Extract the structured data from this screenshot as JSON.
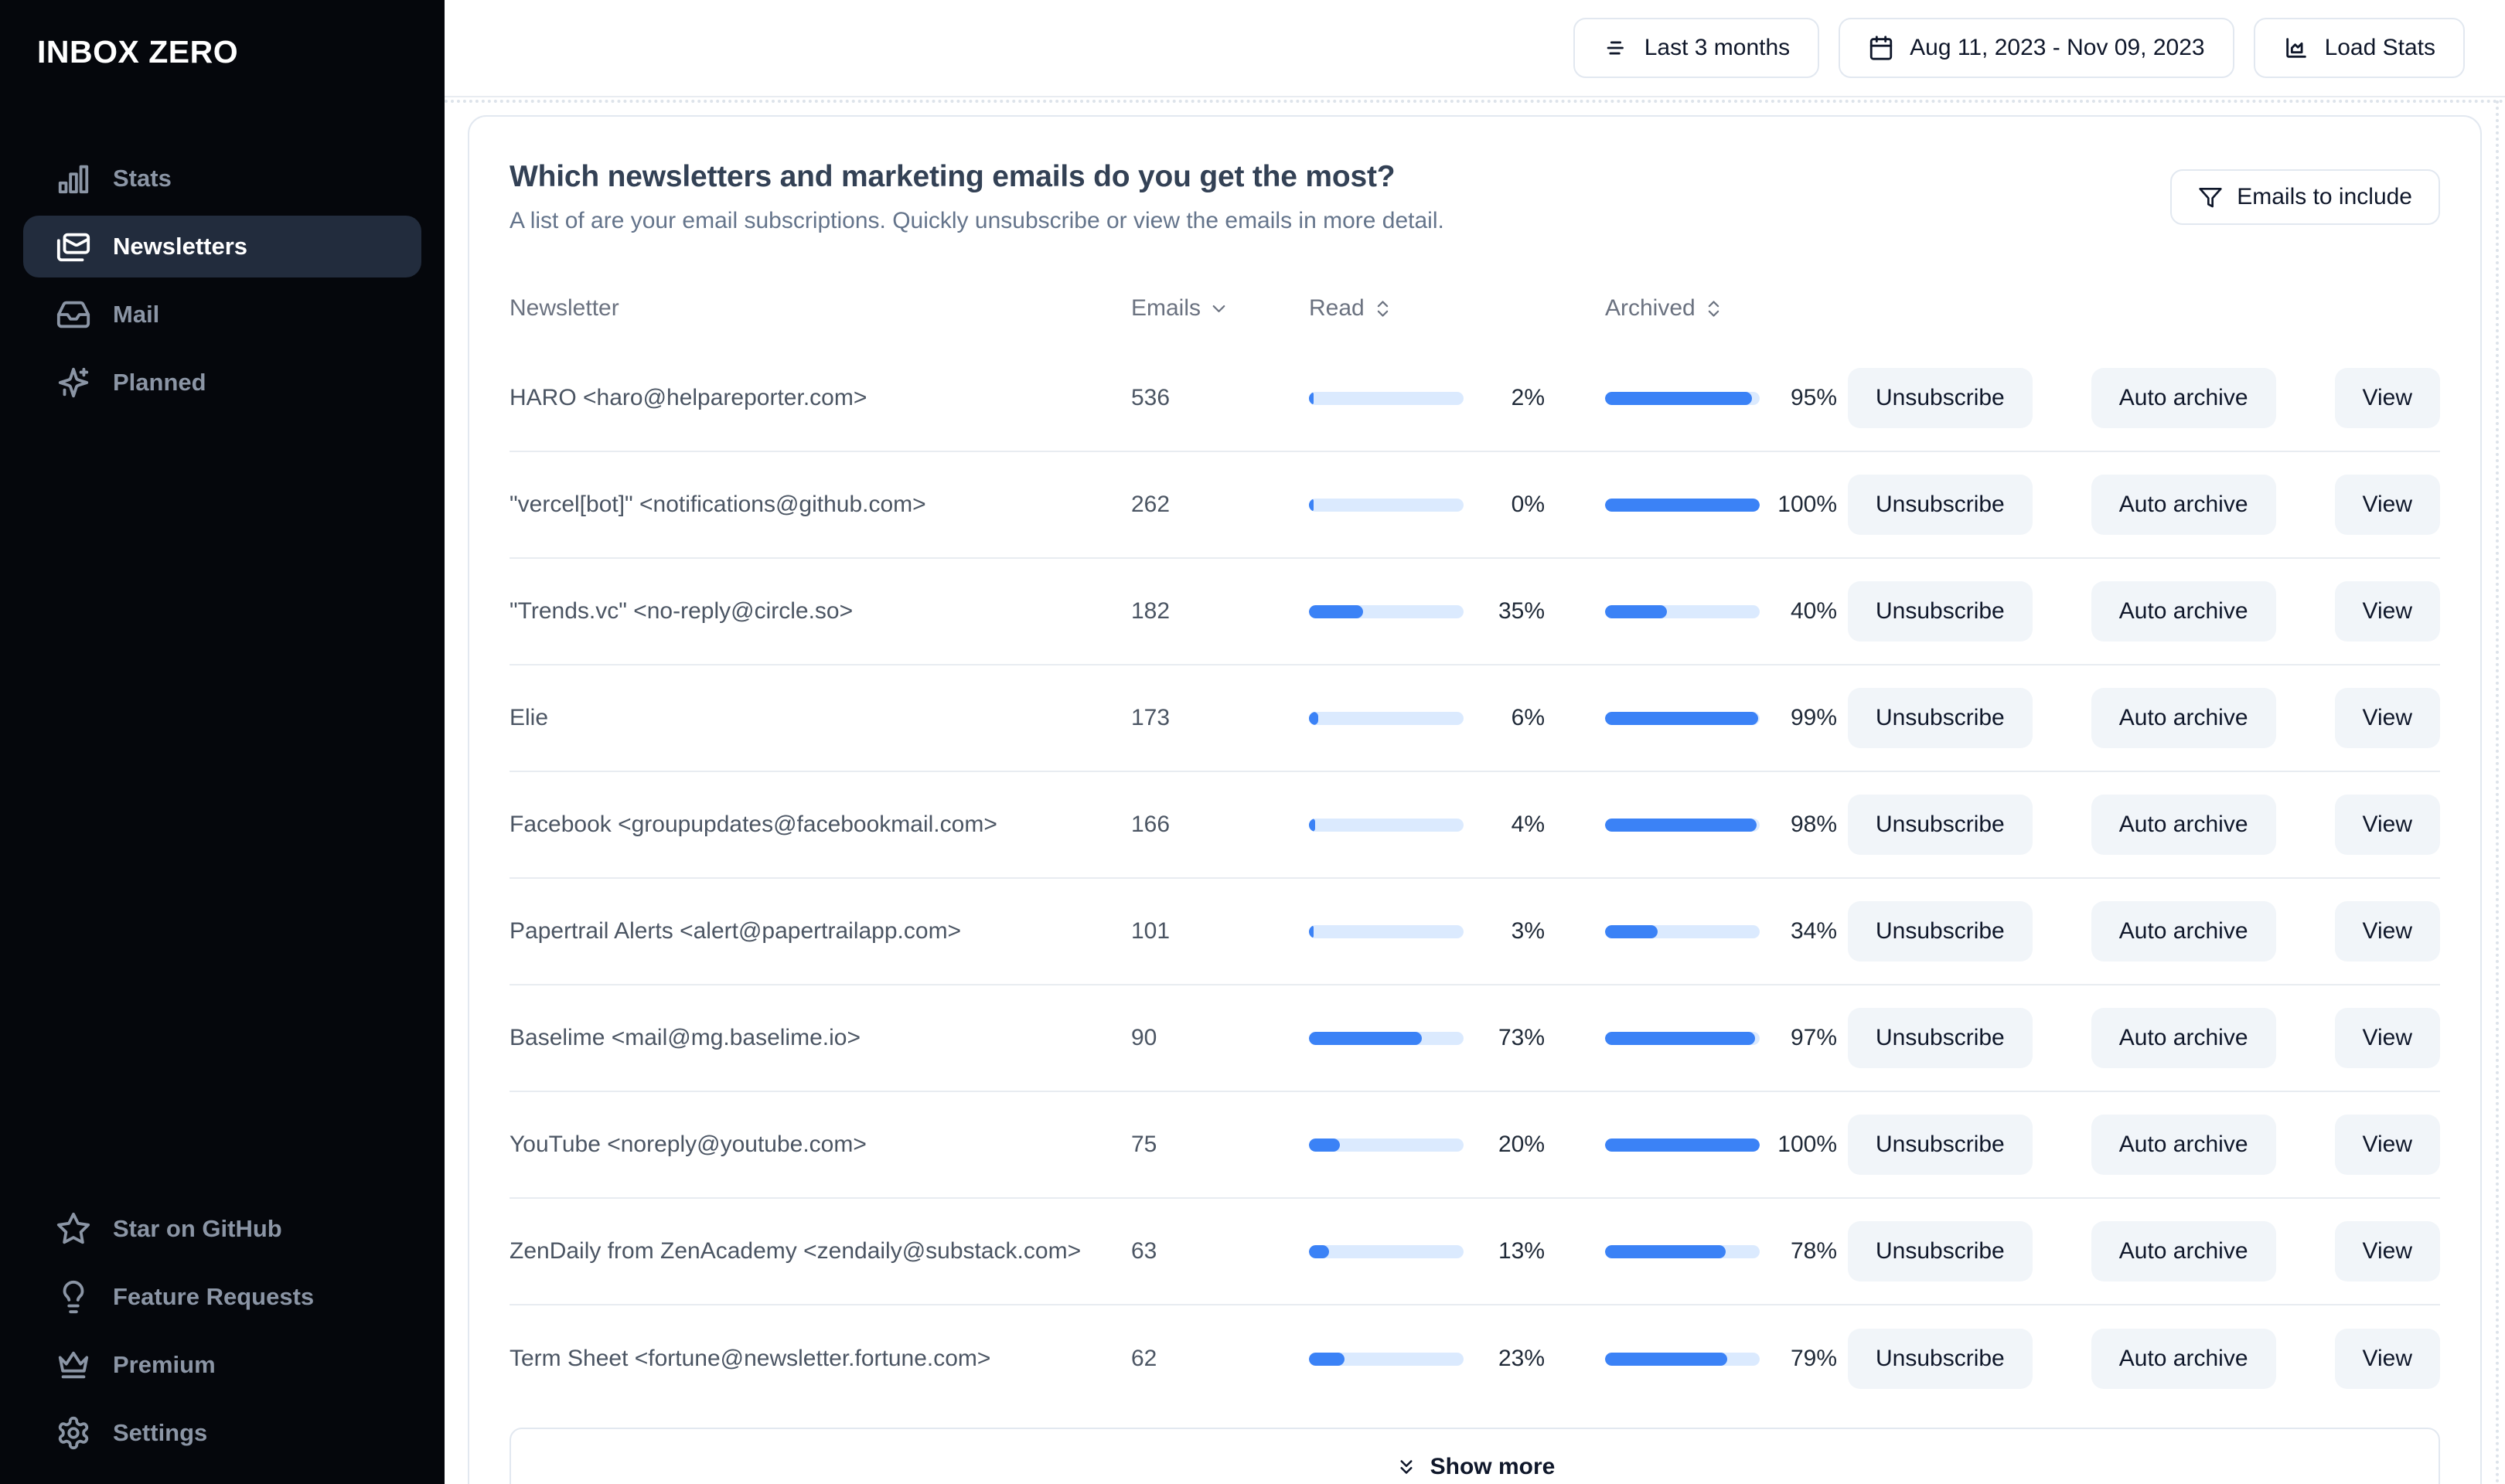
{
  "app": {
    "logo": "INBOX ZERO"
  },
  "sidebar": {
    "items": [
      {
        "icon": "bar-chart-icon",
        "label": "Stats",
        "active": false
      },
      {
        "icon": "mails-icon",
        "label": "Newsletters",
        "active": true
      },
      {
        "icon": "inbox-icon",
        "label": "Mail",
        "active": false
      },
      {
        "icon": "sparkles-icon",
        "label": "Planned",
        "active": false
      }
    ],
    "footer_items": [
      {
        "icon": "star-icon",
        "label": "Star on GitHub"
      },
      {
        "icon": "lightbulb-icon",
        "label": "Feature Requests"
      },
      {
        "icon": "crown-icon",
        "label": "Premium"
      },
      {
        "icon": "gear-icon",
        "label": "Settings"
      }
    ]
  },
  "topbar": {
    "period_button": {
      "icon": "filter-lines-icon",
      "label": "Last 3 months"
    },
    "date_range_button": {
      "icon": "calendar-icon",
      "label": "Aug 11, 2023 - Nov 09, 2023"
    },
    "load_stats_button": {
      "icon": "chart-icon",
      "label": "Load Stats"
    }
  },
  "card": {
    "title": "Which newsletters and marketing emails do you get the most?",
    "subtitle": "A list of are your email subscriptions. Quickly unsubscribe or view the emails in more detail.",
    "filter_button": {
      "icon": "funnel-icon",
      "label": "Emails to include"
    },
    "table": {
      "columns": [
        {
          "label": "Newsletter",
          "sort": "none"
        },
        {
          "label": "Emails",
          "sort": "desc"
        },
        {
          "label": "Read",
          "sort": "sortable"
        },
        {
          "label": "Archived",
          "sort": "sortable"
        }
      ],
      "actions": [
        "Unsubscribe",
        "Auto archive",
        "View"
      ],
      "rows": [
        {
          "name": "HARO <haro@helpareporter.com>",
          "emails": "536",
          "read_pct": 2,
          "archived_pct": 95
        },
        {
          "name": "\"vercel[bot]\" <notifications@github.com>",
          "emails": "262",
          "read_pct": 0,
          "archived_pct": 100
        },
        {
          "name": "\"Trends.vc\" <no-reply@circle.so>",
          "emails": "182",
          "read_pct": 35,
          "archived_pct": 40
        },
        {
          "name": "Elie",
          "emails": "173",
          "read_pct": 6,
          "archived_pct": 99
        },
        {
          "name": "Facebook <groupupdates@facebookmail.com>",
          "emails": "166",
          "read_pct": 4,
          "archived_pct": 98
        },
        {
          "name": "Papertrail Alerts <alert@papertrailapp.com>",
          "emails": "101",
          "read_pct": 3,
          "archived_pct": 34
        },
        {
          "name": "Baselime <mail@mg.baselime.io>",
          "emails": "90",
          "read_pct": 73,
          "archived_pct": 97
        },
        {
          "name": "YouTube <noreply@youtube.com>",
          "emails": "75",
          "read_pct": 20,
          "archived_pct": 100
        },
        {
          "name": "ZenDaily from ZenAcademy <zendaily@substack.com>",
          "emails": "63",
          "read_pct": 13,
          "archived_pct": 78
        },
        {
          "name": "Term Sheet <fortune@newsletter.fortune.com>",
          "emails": "62",
          "read_pct": 23,
          "archived_pct": 79
        }
      ],
      "show_more": {
        "icon": "chevrons-down-icon",
        "label": "Show more"
      }
    }
  },
  "colors": {
    "progress_fill": "#3b82f6",
    "progress_track": "#dbeafe",
    "sidebar_active_bg": "#222c3d",
    "border": "#e2e8f0"
  }
}
